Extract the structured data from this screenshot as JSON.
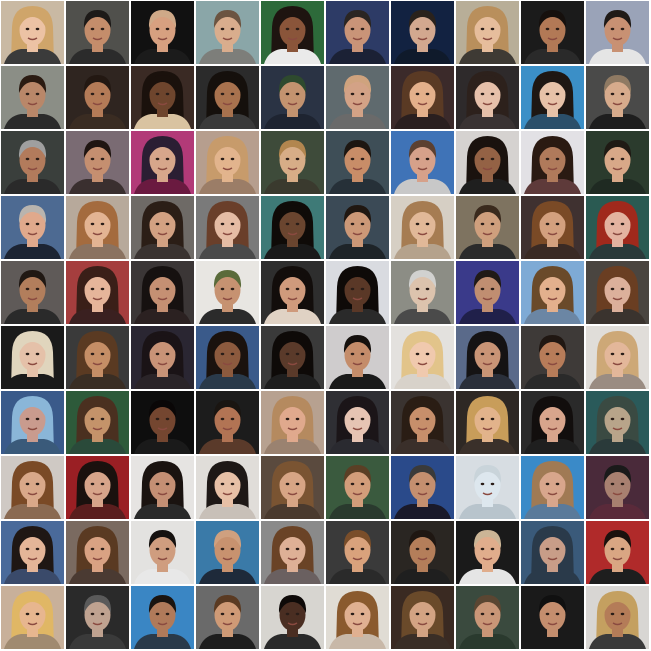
{
  "grid": {
    "rows": 10,
    "columns": 10,
    "tiles": [
      {
        "bg": "#c9b9a3",
        "skin": "#ecc2a4",
        "hair": "#cfa56a",
        "long": true,
        "shirt": "#3b3b3b"
      },
      {
        "bg": "#50504c",
        "skin": "#c48d6b",
        "hair": "#1d1a18",
        "long": false,
        "shirt": "#2b2b2b"
      },
      {
        "bg": "#111111",
        "skin": "#d7a080",
        "hair": "#cfa988",
        "long": false,
        "shirt": "#1b1b1b"
      },
      {
        "bg": "#8aa6a8",
        "skin": "#d9ad8d",
        "hair": "#6b5441",
        "long": false,
        "shirt": "#7d7e7a"
      },
      {
        "bg": "#2d6a3a",
        "skin": "#8a553a",
        "hair": "#1e1410",
        "long": true,
        "shirt": "#eaeaea"
      },
      {
        "bg": "#2d3b66",
        "skin": "#c99478",
        "hair": "#2a2522",
        "long": false,
        "shirt": "#1b2135"
      },
      {
        "bg": "#122241",
        "skin": "#d2a88f",
        "hair": "#2a221c",
        "long": false,
        "shirt": "#0f1a2b"
      },
      {
        "bg": "#b8ae98",
        "skin": "#e6bd9c",
        "hair": "#b98f5c",
        "long": true,
        "shirt": "#3e3a34"
      },
      {
        "bg": "#1b1b1b",
        "skin": "#b27956",
        "hair": "#16100d",
        "long": false,
        "shirt": "#2a2a2a"
      },
      {
        "bg": "#9aa3b8",
        "skin": "#c89173",
        "hair": "#1f1a17",
        "long": false,
        "shirt": "#e5e5e5"
      },
      {
        "bg": "#8b8e86",
        "skin": "#b98769",
        "hair": "#2b1b12",
        "long": false,
        "shirt": "#2b2b2b"
      },
      {
        "bg": "#2f2520",
        "skin": "#b47b57",
        "hair": "#231812",
        "long": false,
        "shirt": "#3a2c22"
      },
      {
        "bg": "#3a2a24",
        "skin": "#6e452d",
        "hair": "#1a110c",
        "long": true,
        "shirt": "#d9c3a1"
      },
      {
        "bg": "#2b2b2b",
        "skin": "#a8724e",
        "hair": "#15100c",
        "long": true,
        "shirt": "#3a3a3a"
      },
      {
        "bg": "#2a3344",
        "skin": "#c3936f",
        "hair": "#2e4a2e",
        "long": false,
        "shirt": "#1e2431"
      },
      {
        "bg": "#5f6a6e",
        "skin": "#d3a286",
        "hair": "#cfa37e",
        "long": false,
        "shirt": "#6a6a6a"
      },
      {
        "bg": "#3b2a2a",
        "skin": "#e3b08b",
        "hair": "#5a3a24",
        "long": true,
        "shirt": "#2a1f1f"
      },
      {
        "bg": "#2e2a2b",
        "skin": "#e6c0aa",
        "hair": "#2d211c",
        "long": true,
        "shirt": "#3a3333"
      },
      {
        "bg": "#3b8fc7",
        "skin": "#e7c2a8",
        "hair": "#1e1713",
        "long": true,
        "shirt": "#2b4f6a"
      },
      {
        "bg": "#4a4a49",
        "skin": "#d7ab8c",
        "hair": "#8f7a63",
        "long": false,
        "shirt": "#1e1e1e"
      },
      {
        "bg": "#3a3f3c",
        "skin": "#b27b5c",
        "hair": "#9f9f9f",
        "long": false,
        "shirt": "#2a2a2a"
      },
      {
        "bg": "#7a6b73",
        "skin": "#c58f70",
        "hair": "#1f1511",
        "long": false,
        "shirt": "#3a2f2f"
      },
      {
        "bg": "#b23a78",
        "skin": "#d7a68b",
        "hair": "#2b1e33",
        "long": true,
        "shirt": "#6a1a40"
      },
      {
        "bg": "#b69e8e",
        "skin": "#e2b48d",
        "hair": "#c79b6b",
        "long": true,
        "shirt": "#9b7d67"
      },
      {
        "bg": "#3e4b3a",
        "skin": "#d7ad87",
        "hair": "#b2864f",
        "long": false,
        "shirt": "#3a3a2e"
      },
      {
        "bg": "#3e4e57",
        "skin": "#c88d68",
        "hair": "#1d1611",
        "long": false,
        "shirt": "#263038"
      },
      {
        "bg": "#3f73b7",
        "skin": "#d6a18a",
        "hair": "#5c4030",
        "long": false,
        "shirt": "#c8c8c8"
      },
      {
        "bg": "#d5d2d0",
        "skin": "#946245",
        "hair": "#1a120e",
        "long": true,
        "shirt": "#1f1f1f"
      },
      {
        "bg": "#e2e1e5",
        "skin": "#b07a5b",
        "hair": "#2a1a12",
        "long": true,
        "shirt": "#5e3a3a"
      },
      {
        "bg": "#2b3b2d",
        "skin": "#d8a888",
        "hair": "#1f1a14",
        "long": false,
        "shirt": "#1f2a22"
      },
      {
        "bg": "#4d6a92",
        "skin": "#e0a98c",
        "hair": "#b9b4ae",
        "long": false,
        "shirt": "#1c2433"
      },
      {
        "bg": "#b7a99b",
        "skin": "#e3b493",
        "hair": "#a46b3e",
        "long": true,
        "shirt": "#8a7260"
      },
      {
        "bg": "#6e6a66",
        "skin": "#d2a182",
        "hair": "#2b1e16",
        "long": true,
        "shirt": "#3a3330"
      },
      {
        "bg": "#7a7a7a",
        "skin": "#e5bca4",
        "hair": "#6a3f2a",
        "long": true,
        "shirt": "#4a4a4a"
      },
      {
        "bg": "#3e7a77",
        "skin": "#6a452f",
        "hair": "#0f0b08",
        "long": true,
        "shirt": "#1a1a1a"
      },
      {
        "bg": "#3b4a56",
        "skin": "#cc9877",
        "hair": "#201711",
        "long": false,
        "shirt": "#1e2428"
      },
      {
        "bg": "#d6cfc4",
        "skin": "#e1b898",
        "hair": "#a67c52",
        "long": true,
        "shirt": "#b5a28c"
      },
      {
        "bg": "#7e7360",
        "skin": "#cf9f7d",
        "hair": "#3a2a1d",
        "long": false,
        "shirt": "#2b2b2b"
      },
      {
        "bg": "#3f3130",
        "skin": "#d3a07e",
        "hair": "#7a4a26",
        "long": true,
        "shirt": "#3a2a24"
      },
      {
        "bg": "#2a5a52",
        "skin": "#e3b3a0",
        "hair": "#a0291c",
        "long": true,
        "shirt": "#2a3a3a"
      },
      {
        "bg": "#5f5a58",
        "skin": "#b27e5c",
        "hair": "#201813",
        "long": false,
        "shirt": "#2a2a2a"
      },
      {
        "bg": "#a53e3e",
        "skin": "#e6b59a",
        "hair": "#3a1f18",
        "long": true,
        "shirt": "#3a2020"
      },
      {
        "bg": "#3b3636",
        "skin": "#c59073",
        "hair": "#161110",
        "long": true,
        "shirt": "#2b2121"
      },
      {
        "bg": "#e8e6e2",
        "skin": "#c69271",
        "hair": "#5a6b3a",
        "long": false,
        "shirt": "#2b2b2b"
      },
      {
        "bg": "#2e2e2e",
        "skin": "#cf9a7c",
        "hair": "#120d0b",
        "long": true,
        "shirt": "#e0d2c4"
      },
      {
        "bg": "#d9dbe0",
        "skin": "#5a3827",
        "hair": "#0e0a08",
        "long": true,
        "shirt": "#2a2a2a"
      },
      {
        "bg": "#8c8d85",
        "skin": "#dcc3ad",
        "hair": "#d1d1cf",
        "long": false,
        "shirt": "#4a4a4a"
      },
      {
        "bg": "#3a3a8a",
        "skin": "#c08e71",
        "hair": "#201a17",
        "long": false,
        "shirt": "#20204a"
      },
      {
        "bg": "#7eaad5",
        "skin": "#e3b08d",
        "hair": "#6a4a2a",
        "long": true,
        "shirt": "#6b86a4"
      },
      {
        "bg": "#4a4540",
        "skin": "#dcb09b",
        "hair": "#6a3e22",
        "long": true,
        "shirt": "#3a332e"
      },
      {
        "bg": "#1a1a1a",
        "skin": "#e5c1a9",
        "hair": "#e0d5bd",
        "long": true,
        "shirt": "#1a1a1a"
      },
      {
        "bg": "#3a3a3a",
        "skin": "#c58e66",
        "hair": "#5a3a22",
        "long": true,
        "shirt": "#3a2e24"
      },
      {
        "bg": "#2a2632",
        "skin": "#c89377",
        "hair": "#1a1316",
        "long": true,
        "shirt": "#2a2428"
      },
      {
        "bg": "#3a5a8a",
        "skin": "#8c5a3e",
        "hair": "#1a120e",
        "long": true,
        "shirt": "#2a3a4a"
      },
      {
        "bg": "#3a3a3a",
        "skin": "#5a3a2a",
        "hair": "#0e0a08",
        "long": true,
        "shirt": "#1e1e1e"
      },
      {
        "bg": "#cfcccd",
        "skin": "#c48c6a",
        "hair": "#15100d",
        "long": false,
        "shirt": "#1a1a1a"
      },
      {
        "bg": "#e3e1de",
        "skin": "#f0c9ae",
        "hair": "#e2c48a",
        "long": true,
        "shirt": "#d8d2ca"
      },
      {
        "bg": "#5a6a8a",
        "skin": "#c99476",
        "hair": "#151314",
        "long": true,
        "shirt": "#2a2f3a"
      },
      {
        "bg": "#3e3a38",
        "skin": "#b77c59",
        "hair": "#201712",
        "long": false,
        "shirt": "#2a2a2a"
      },
      {
        "bg": "#e0ddd9",
        "skin": "#e3b79a",
        "hair": "#cda877",
        "long": true,
        "shirt": "#9a8c82"
      },
      {
        "bg": "#3a5a8a",
        "skin": "#c99b8e",
        "hair": "#8ab6d8",
        "long": true,
        "shirt": "#3a5a7a"
      },
      {
        "bg": "#2d5a3a",
        "skin": "#c4936a",
        "hair": "#4a3020",
        "long": true,
        "shirt": "#2a4a3a"
      },
      {
        "bg": "#0e0e0e",
        "skin": "#744630",
        "hair": "#0a0707",
        "long": false,
        "shirt": "#1a1a1a"
      },
      {
        "bg": "#1c1c1c",
        "skin": "#b27454",
        "hair": "#1a1511",
        "long": false,
        "shirt": "#5a3a2a"
      },
      {
        "bg": "#b7a190",
        "skin": "#e0a98d",
        "hair": "#b58a5f",
        "long": true,
        "shirt": "#9a8270"
      },
      {
        "bg": "#2f2f34",
        "skin": "#e6c4b3",
        "hair": "#1b1518",
        "long": true,
        "shirt": "#2a2a30"
      },
      {
        "bg": "#3a3330",
        "skin": "#c78f6b",
        "hair": "#2a1d14",
        "long": true,
        "shirt": "#3a2f2a"
      },
      {
        "bg": "#2e2824",
        "skin": "#e2b38b",
        "hair": "#c89d5a",
        "long": true,
        "shirt": "#3a302a"
      },
      {
        "bg": "#2a2a2a",
        "skin": "#d8a58c",
        "hair": "#120e0d",
        "long": true,
        "shirt": "#1f1f1f"
      },
      {
        "bg": "#2a5a5a",
        "skin": "#b8a48a",
        "hair": "#3a4a42",
        "long": true,
        "shirt": "#2a3a3a"
      },
      {
        "bg": "#cfc9c4",
        "skin": "#d9a889",
        "hair": "#7a4a26",
        "long": true,
        "shirt": "#8a6a52"
      },
      {
        "bg": "#9a1f24",
        "skin": "#d7a48a",
        "hair": "#1a110e",
        "long": true,
        "shirt": "#5a1e1e"
      },
      {
        "bg": "#e6e4e2",
        "skin": "#c48f74",
        "hair": "#1a1310",
        "long": true,
        "shirt": "#2a2a2a"
      },
      {
        "bg": "#e0ddd9",
        "skin": "#e7c0a6",
        "hair": "#1e1816",
        "long": true,
        "shirt": "#c8c0b8"
      },
      {
        "bg": "#5a4a3e",
        "skin": "#d7a585",
        "hair": "#7a5432",
        "long": true,
        "shirt": "#4a3a2e"
      },
      {
        "bg": "#3a5a3e",
        "skin": "#d29d7a",
        "hair": "#5a3f25",
        "long": false,
        "shirt": "#2a3a2e"
      },
      {
        "bg": "#2a4a8a",
        "skin": "#c48f6f",
        "hair": "#3a3a3a",
        "long": false,
        "shirt": "#1a1a2a"
      },
      {
        "bg": "#d7dde2",
        "skin": "#dde7ee",
        "hair": "#c9d4da",
        "long": false,
        "shirt": "#b8c4cc"
      },
      {
        "bg": "#3a8ac8",
        "skin": "#d8a68c",
        "hair": "#a07a54",
        "long": true,
        "shirt": "#5a7a9a"
      },
      {
        "bg": "#4a2a3a",
        "skin": "#a88070",
        "hair": "#1a1a1a",
        "long": false,
        "shirt": "#5a2a3a"
      },
      {
        "bg": "#4a6a9a",
        "skin": "#e4b598",
        "hair": "#1f1714",
        "long": true,
        "shirt": "#3a4a6a"
      },
      {
        "bg": "#7a6a60",
        "skin": "#d9a283",
        "hair": "#5a3a22",
        "long": true,
        "shirt": "#4a3a32"
      },
      {
        "bg": "#e3e2e0",
        "skin": "#cf9d7f",
        "hair": "#15110f",
        "long": false,
        "shirt": "#e8e8e8"
      },
      {
        "bg": "#3a7aa8",
        "skin": "#c8926f",
        "hair": "#cfa07f",
        "long": false,
        "shirt": "#1e2a3a"
      },
      {
        "bg": "#8a8a8a",
        "skin": "#deb096",
        "hair": "#6a4326",
        "long": true,
        "shirt": "#6a6060"
      },
      {
        "bg": "#3a3a3a",
        "skin": "#d9a27c",
        "hair": "#7a4e2a",
        "long": false,
        "shirt": "#2a2a2a"
      },
      {
        "bg": "#2a2622",
        "skin": "#b47e5a",
        "hair": "#1f1712",
        "long": false,
        "shirt": "#1f1f1f"
      },
      {
        "bg": "#1a1a1a",
        "skin": "#e0ad8c",
        "hair": "#cbb596",
        "long": false,
        "shirt": "#e5e5e5"
      },
      {
        "bg": "#3a5a7a",
        "skin": "#c89d88",
        "hair": "#2a3a4a",
        "long": true,
        "shirt": "#2a3a4a"
      },
      {
        "bg": "#b02a2a",
        "skin": "#d9a683",
        "hair": "#1a110d",
        "long": false,
        "shirt": "#1e1e1e"
      },
      {
        "bg": "#c8b09a",
        "skin": "#e7b68f",
        "hair": "#e0b765",
        "long": true,
        "shirt": "#a08a70"
      },
      {
        "bg": "#2a2a2a",
        "skin": "#bfa290",
        "hair": "#5a5a5a",
        "long": false,
        "shirt": "#3a3a3a"
      },
      {
        "bg": "#3a86c4",
        "skin": "#b07a5a",
        "hair": "#1a1410",
        "long": false,
        "shirt": "#2a3a4a"
      },
      {
        "bg": "#6a6a6a",
        "skin": "#cf9a76",
        "hair": "#5a3a22",
        "long": false,
        "shirt": "#1e1e1e"
      },
      {
        "bg": "#d7d5d0",
        "skin": "#4a2e22",
        "hair": "#0e0a08",
        "long": false,
        "shirt": "#2a2a2a"
      },
      {
        "bg": "#e0dcd4",
        "skin": "#e0b091",
        "hair": "#8a5a2e",
        "long": true,
        "shirt": "#c8b8a8"
      },
      {
        "bg": "#3a2a22",
        "skin": "#d3a383",
        "hair": "#6a4a2a",
        "long": true,
        "shirt": "#3a2e26"
      },
      {
        "bg": "#3a4a3e",
        "skin": "#c99677",
        "hair": "#5a4632",
        "long": false,
        "shirt": "#2a3a2e"
      },
      {
        "bg": "#1a1a1a",
        "skin": "#c48e6e",
        "hair": "#101010",
        "long": false,
        "shirt": "#1a1a1a"
      },
      {
        "bg": "#d8d6d3",
        "skin": "#b47c58",
        "hair": "#c4a060",
        "long": true,
        "shirt": "#3a3a3a"
      }
    ]
  }
}
